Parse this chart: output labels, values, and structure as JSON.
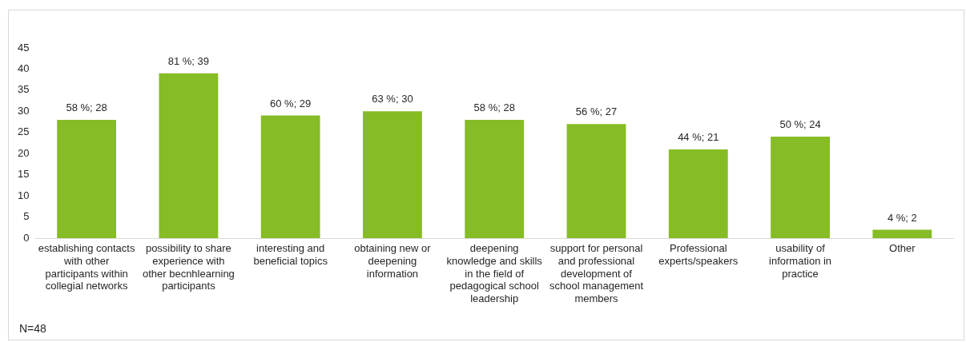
{
  "chart_data": {
    "type": "bar",
    "categories": [
      "establishing contacts with other participants within collegial networks",
      "possibility to share experience with other becnhlearning participants",
      "interesting and beneficial topics",
      "obtaining new or deepening information",
      "deepening knowledge and skills in the field of pedagogical school leadership",
      "support for personal and professional development of school management members",
      "Professional experts/speakers",
      "usability of information in practice",
      "Other"
    ],
    "values": [
      28,
      39,
      29,
      30,
      28,
      27,
      21,
      24,
      2
    ],
    "value_labels": [
      "58 %; 28",
      "81 %; 39",
      "60 %; 29",
      "63 %; 30",
      "58 %; 28",
      "56 %; 27",
      "44 %; 21",
      "50 %; 24",
      "4 %; 2"
    ],
    "color": "#86bc25",
    "ylim": [
      0,
      45
    ],
    "yticks": [
      0,
      5,
      10,
      15,
      20,
      25,
      30,
      35,
      40,
      45
    ],
    "grid": false,
    "legend": false,
    "annotations": [
      "N=48"
    ]
  }
}
